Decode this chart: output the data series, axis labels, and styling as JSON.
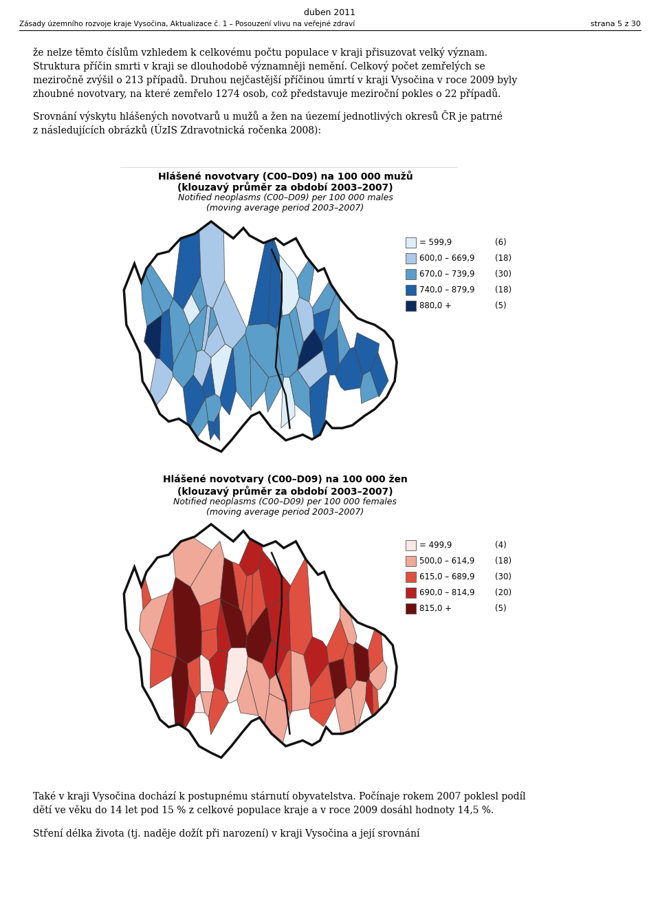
{
  "header_left": "Zásady územního rozvoje kraje Vysočina, Aktualizace č. 1 – Posouzení vlivu na veřejné zdraví",
  "header_right": "strana 5 z 30",
  "header_top": "duben 2011",
  "para1_lines": [
    "že nelze těmto číslům vzhledem k celkovému počtu populace v kraji přisuzovat velký význam.",
    "Struktura příčin smrti v kraji se dlouhodobě významněji nemění. Celkový počet zemřelých se",
    "meziročně zvýšil o 213 případů. Druhou nejčastější příčinou úmrtí v kraji Vysočina v roce 2009 byly",
    "zhoubné novotvary, na které zemřelo 1274 osob, což představuje meziroční pokles o 22 případů."
  ],
  "para2_lines": [
    "Srovnání výskytu hlášených novotvarů u mužů a žen na úezemí jednotlivých okresů ČR je patrné",
    "z následujících obrázků (ÚzIS Zdravotnická ročenka 2008):"
  ],
  "map1_title_cz": "Hlášené novotvary (C00–D09) na 100 000 mužů",
  "map1_subtitle_cz": "(klouzavý průměr za období 2003–2007)",
  "map1_title_en": "Notified neoplasms (C00–D09) per 100 000 males",
  "map1_subtitle_en": "(moving average period 2003–2007)",
  "map1_legend": [
    {
      "label": "= 599,9  ",
      "count": "(6)",
      "color": "#ddeef8"
    },
    {
      "label": "600,0 – 669,9",
      "count": "(18)",
      "color": "#aac8e8"
    },
    {
      "label": "670,0 – 739,9",
      "count": "(30)",
      "color": "#5b9ec9"
    },
    {
      "label": "740,0 – 879,9",
      "count": "(18)",
      "color": "#1f5fa6"
    },
    {
      "label": "880,0 +       ",
      "count": "(5)",
      "color": "#0d2a5e"
    }
  ],
  "map2_title_cz": "Hlášené novotvary (C00–D09) na 100 000 žen",
  "map2_subtitle_cz": "(klouzavý průměr za období 2003–2007)",
  "map2_title_en": "Notified neoplasms (C00–D09) per 100 000 females",
  "map2_subtitle_en": "(moving average period 2003–2007)",
  "map2_legend": [
    {
      "label": "= 499,9  ",
      "count": "(4)",
      "color": "#fce8e4"
    },
    {
      "label": "500,0 – 614,9",
      "count": "(18)",
      "color": "#f0a898"
    },
    {
      "label": "615,0 – 689,9",
      "count": "(30)",
      "color": "#e05040"
    },
    {
      "label": "690,0 – 814,9",
      "count": "(20)",
      "color": "#b82020"
    },
    {
      "label": "815,0 +       ",
      "count": "(5)",
      "color": "#6b1010"
    }
  ],
  "para3_lines": [
    "Také v kraji Vysočina dochází k postupnému stárnutí obyvatelstva. Počínaje rokem 2007 poklesl podíl",
    "dětí ve věku do 14 let pod 15 % z celkové populace kraje a v roce 2009 dosáhl hodnoty 14,5 %."
  ],
  "para4_line": "Stření délka života (tj. naděje dožít při narození) v kraji Vysočina a její srovnání",
  "bg_color": "#ffffff",
  "text_color": "#000000"
}
